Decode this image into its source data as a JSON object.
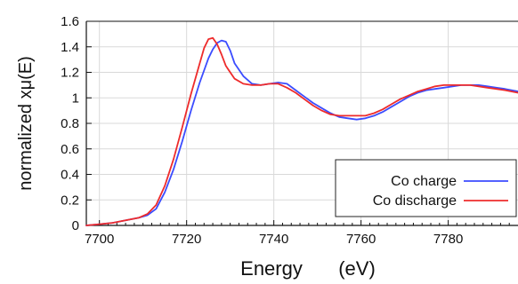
{
  "chart_data": {
    "type": "line",
    "xlabel": "Energy",
    "xlabel_unit": "(eV)",
    "ylabel": "normalized xμ(E)",
    "xlim": [
      7697,
      7796
    ],
    "ylim": [
      0,
      1.6
    ],
    "xticks": [
      7700,
      7720,
      7740,
      7760,
      7780
    ],
    "yticks": [
      0,
      0.2,
      0.4,
      0.6,
      0.8,
      1,
      1.2,
      1.4,
      1.6
    ],
    "xtick_labels": [
      "7700",
      "7720",
      "7740",
      "7760",
      "7780"
    ],
    "ytick_labels": [
      "0",
      "0.2",
      "0.4",
      "0.6",
      "0.8",
      "1",
      "1.2",
      "1.4",
      "1.6"
    ],
    "grid": true,
    "legend_position": "bottom-right",
    "series": [
      {
        "name": "Co charge",
        "color": "#3b4cff",
        "x": [
          7697,
          7700,
          7703,
          7706,
          7709,
          7711,
          7713,
          7715,
          7717,
          7719,
          7721,
          7723,
          7725,
          7726,
          7727,
          7728,
          7729,
          7730,
          7731,
          7733,
          7735,
          7737,
          7739,
          7741,
          7743,
          7745,
          7747,
          7749,
          7751,
          7753,
          7755,
          7757,
          7759,
          7761,
          7763,
          7765,
          7767,
          7769,
          7771,
          7773,
          7775,
          7777,
          7779,
          7781,
          7783,
          7785,
          7787,
          7789,
          7791,
          7793,
          7796
        ],
        "y": [
          0.0,
          0.01,
          0.02,
          0.04,
          0.06,
          0.08,
          0.13,
          0.26,
          0.44,
          0.66,
          0.9,
          1.12,
          1.31,
          1.38,
          1.43,
          1.45,
          1.44,
          1.37,
          1.27,
          1.17,
          1.11,
          1.1,
          1.11,
          1.12,
          1.11,
          1.06,
          1.01,
          0.96,
          0.92,
          0.88,
          0.85,
          0.84,
          0.83,
          0.84,
          0.86,
          0.89,
          0.93,
          0.97,
          1.01,
          1.04,
          1.06,
          1.07,
          1.08,
          1.09,
          1.1,
          1.1,
          1.1,
          1.09,
          1.08,
          1.07,
          1.05
        ]
      },
      {
        "name": "Co discharge",
        "color": "#ee2b2b",
        "x": [
          7697,
          7700,
          7703,
          7706,
          7709,
          7711,
          7713,
          7715,
          7717,
          7719,
          7721,
          7723,
          7724,
          7725,
          7726,
          7727,
          7728,
          7729,
          7731,
          7733,
          7735,
          7737,
          7739,
          7741,
          7743,
          7745,
          7747,
          7749,
          7751,
          7753,
          7755,
          7757,
          7759,
          7761,
          7763,
          7765,
          7767,
          7769,
          7771,
          7773,
          7775,
          7777,
          7779,
          7781,
          7783,
          7785,
          7787,
          7789,
          7791,
          7793,
          7796
        ],
        "y": [
          0.0,
          0.01,
          0.02,
          0.04,
          0.06,
          0.09,
          0.16,
          0.31,
          0.52,
          0.77,
          1.03,
          1.27,
          1.39,
          1.46,
          1.47,
          1.42,
          1.34,
          1.25,
          1.15,
          1.11,
          1.1,
          1.1,
          1.11,
          1.11,
          1.08,
          1.04,
          0.99,
          0.94,
          0.9,
          0.87,
          0.86,
          0.86,
          0.86,
          0.86,
          0.88,
          0.91,
          0.95,
          0.99,
          1.02,
          1.05,
          1.07,
          1.09,
          1.1,
          1.1,
          1.1,
          1.1,
          1.09,
          1.08,
          1.07,
          1.06,
          1.04
        ]
      }
    ]
  }
}
